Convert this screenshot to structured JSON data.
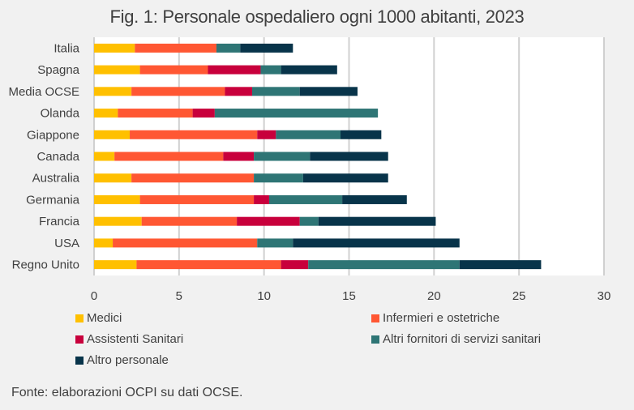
{
  "chart_data": {
    "type": "bar",
    "orientation": "horizontal",
    "stacked": true,
    "title": "Fig. 1: Personale ospedaliero ogni 1000 abitanti, 2023",
    "xlabel": "",
    "ylabel": "",
    "xlim": [
      0,
      30
    ],
    "xticks": [
      0,
      5,
      10,
      15,
      20,
      25,
      30
    ],
    "grid": "vertical",
    "legend_position": "bottom",
    "categories": [
      "Italia",
      "Spagna",
      "Media OCSE",
      "Olanda",
      "Giappone",
      "Canada",
      "Australia",
      "Germania",
      "Francia",
      "USA",
      "Regno Unito"
    ],
    "series": [
      {
        "name": "Medici",
        "color": "#ffc000",
        "values": [
          2.4,
          2.7,
          2.2,
          1.4,
          2.1,
          1.2,
          2.2,
          2.7,
          2.8,
          1.1,
          2.5
        ]
      },
      {
        "name": "Infermieri e ostetriche",
        "color": "#ff5733",
        "values": [
          4.8,
          4.0,
          5.5,
          4.4,
          7.5,
          6.4,
          7.2,
          6.7,
          5.6,
          8.5,
          8.5
        ]
      },
      {
        "name": "Assistenti Sanitari",
        "color": "#c8003c",
        "values": [
          0,
          3.1,
          1.6,
          1.3,
          1.1,
          1.8,
          0,
          0.9,
          3.7,
          0,
          1.6
        ]
      },
      {
        "name": "Altri fornitori di servizi sanitari",
        "color": "#2e7575",
        "values": [
          1.4,
          1.2,
          2.8,
          9.6,
          3.8,
          3.3,
          2.9,
          4.3,
          1.1,
          2.1,
          8.9
        ]
      },
      {
        "name": "Altro personale",
        "color": "#08344a",
        "values": [
          3.1,
          3.3,
          3.4,
          0,
          2.4,
          4.6,
          5.0,
          3.8,
          6.9,
          9.8,
          4.8
        ]
      }
    ],
    "source": "Fonte: elaborazioni OCPI su dati OCSE."
  }
}
